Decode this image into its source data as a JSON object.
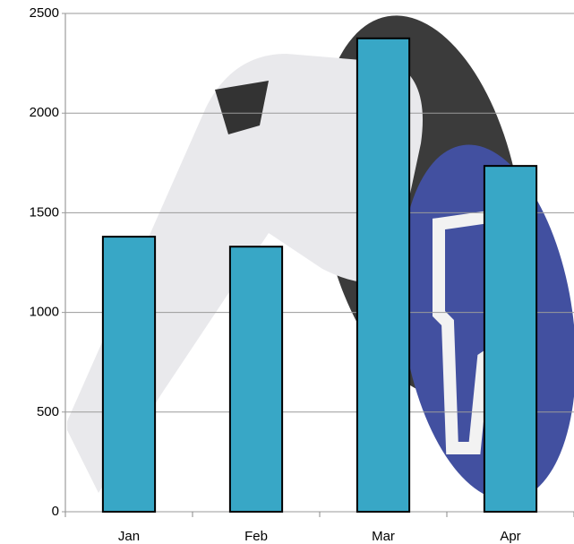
{
  "chart_data": {
    "type": "bar",
    "categories": [
      "Jan",
      "Feb",
      "Mar",
      "Apr"
    ],
    "values": [
      1380,
      1330,
      2375,
      1735
    ],
    "color": "#38a7c6",
    "ylim": [
      0,
      2500
    ],
    "yticks": [
      0,
      500,
      1000,
      1500,
      2000,
      2500
    ],
    "grid": true
  }
}
